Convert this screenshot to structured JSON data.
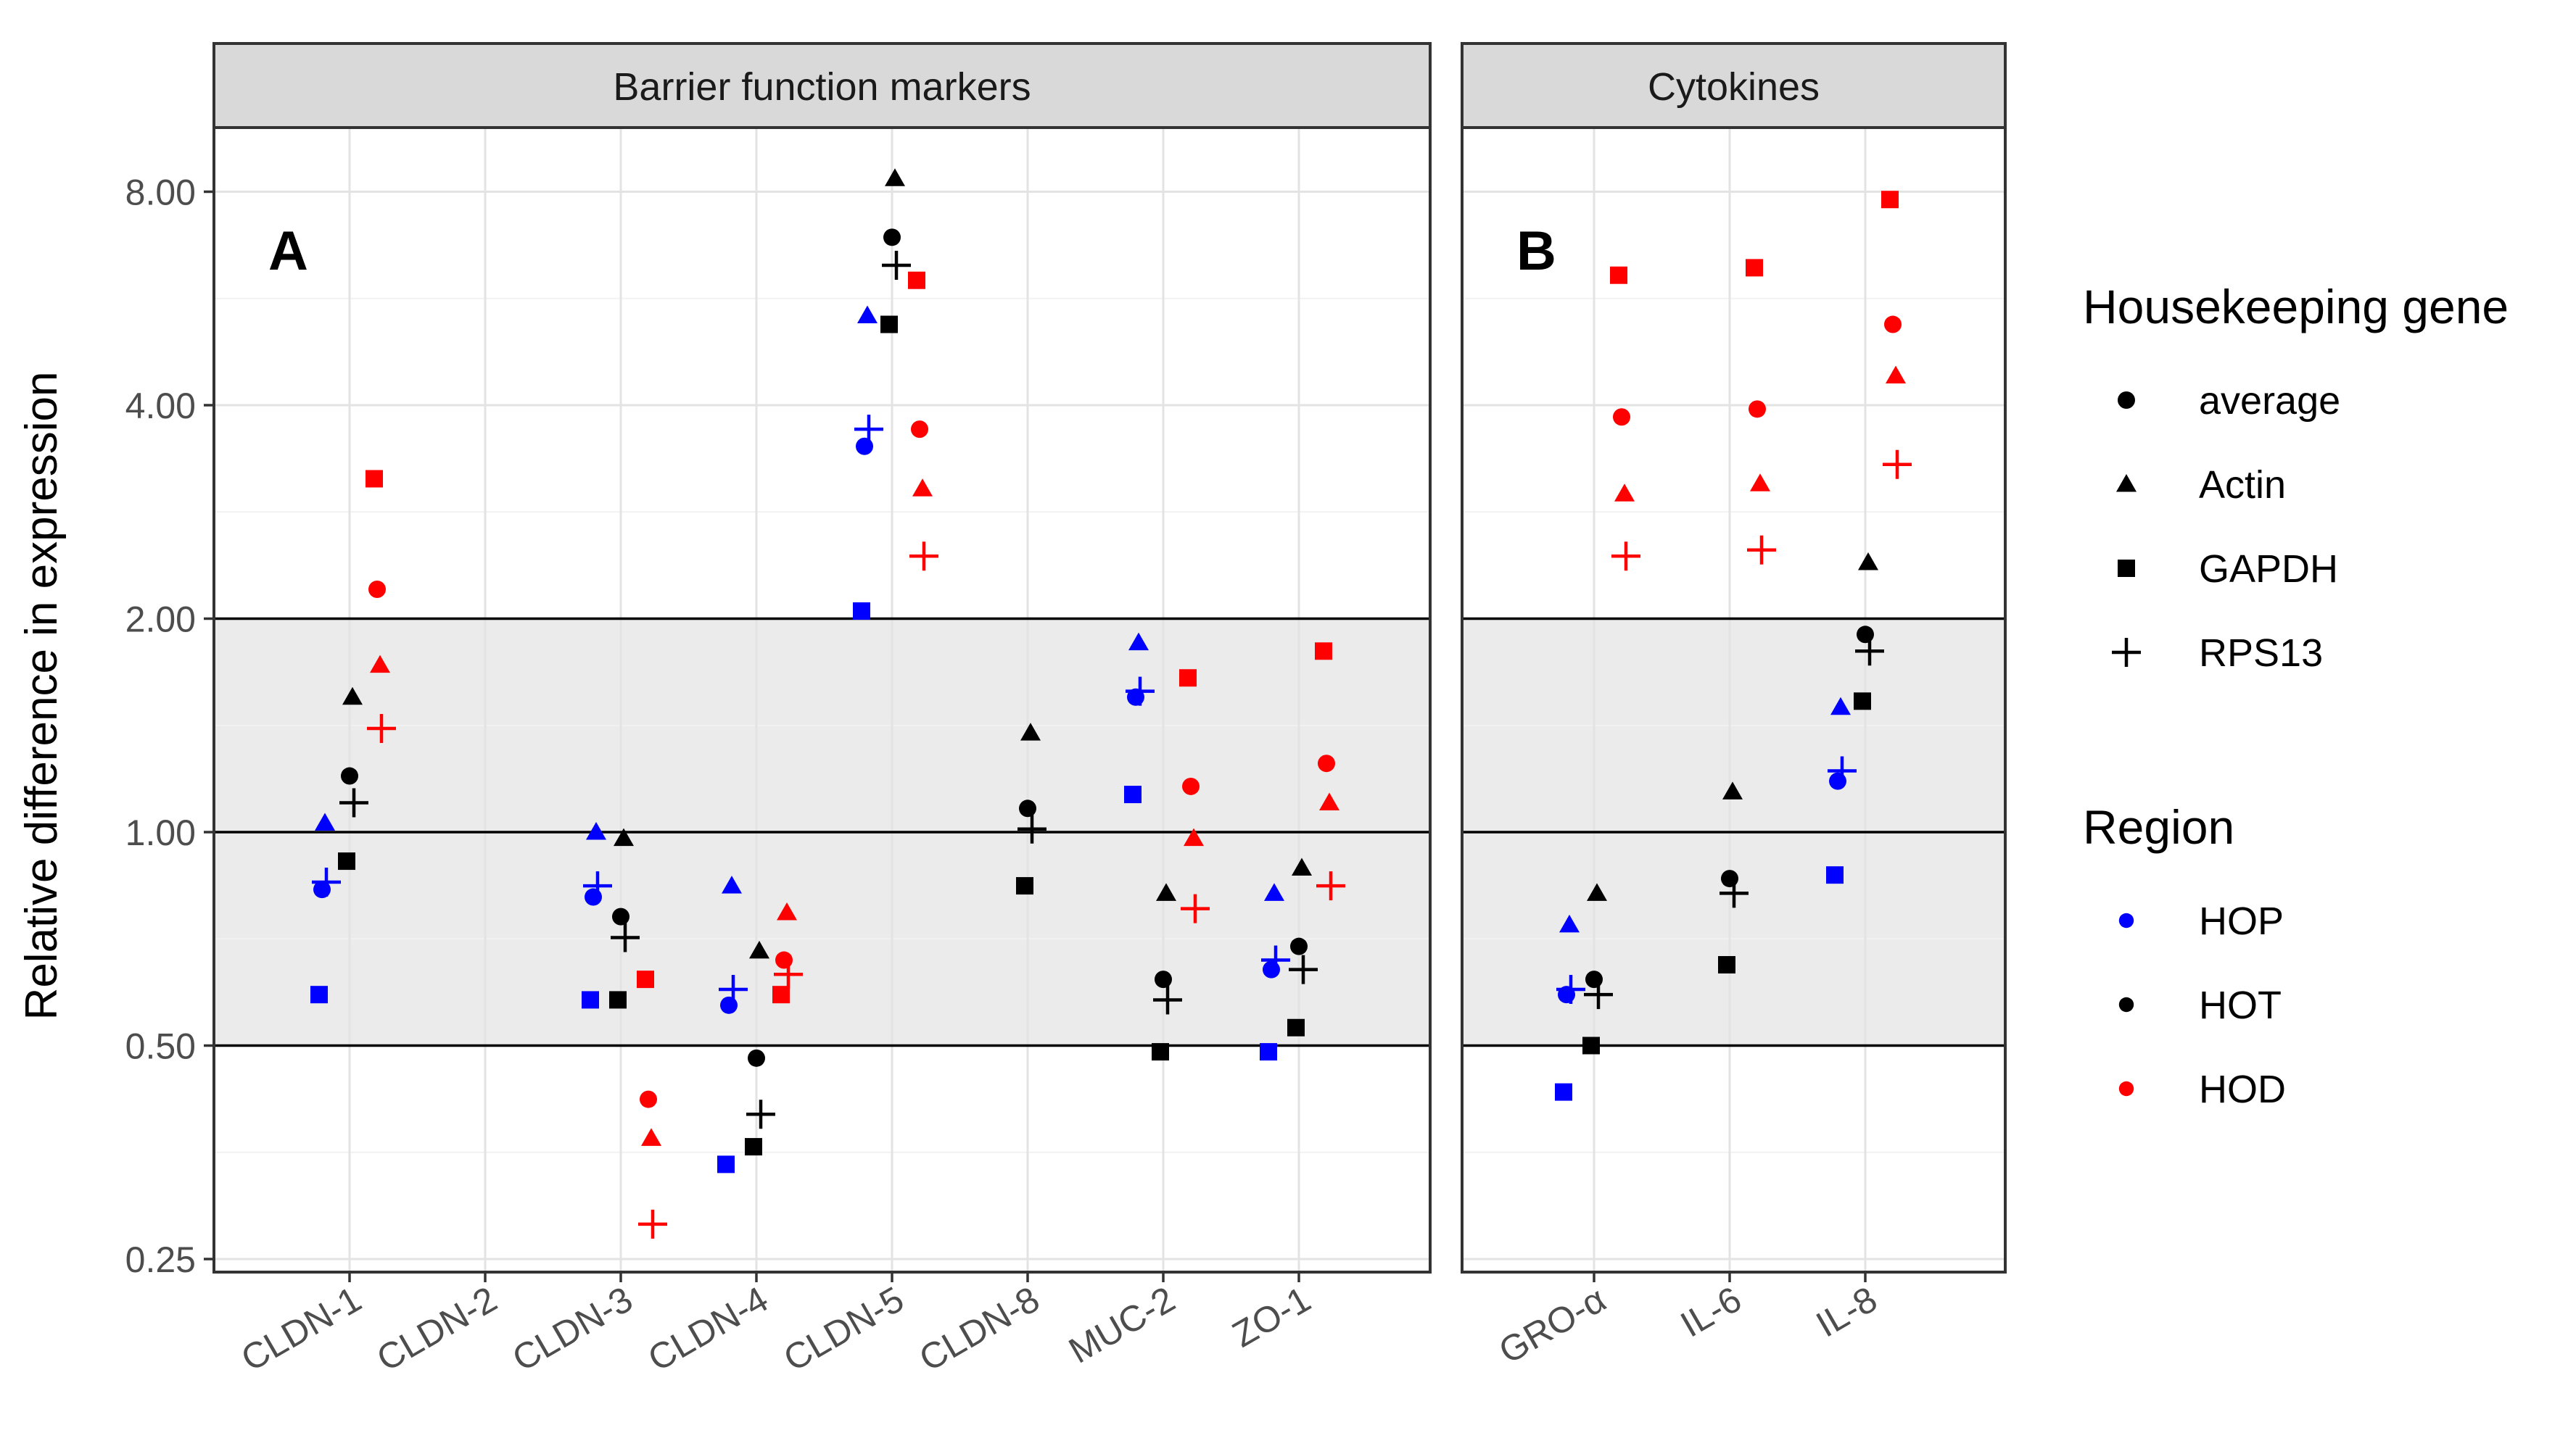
{
  "chart_data": {
    "type": "scatter",
    "ylabel": "Relative difference in expression",
    "yscale": "log2",
    "ylim": [
      0.25,
      10
    ],
    "yticks": [
      {
        "value": 0.25,
        "label": "0.25"
      },
      {
        "value": 0.5,
        "label": "0.50"
      },
      {
        "value": 1,
        "label": "1.00"
      },
      {
        "value": 2,
        "label": "2.00"
      },
      {
        "value": 4,
        "label": "4.00"
      },
      {
        "value": 8,
        "label": "8.00"
      }
    ],
    "shaded_band": [
      0.5,
      2
    ],
    "reference_lines": [
      0.5,
      1,
      2
    ],
    "regions": [
      {
        "name": "HOP",
        "color": "#0000FF",
        "offset": -1
      },
      {
        "name": "HOT",
        "color": "#000000",
        "offset": 0
      },
      {
        "name": "HOD",
        "color": "#FF0000",
        "offset": 1
      }
    ],
    "housekeeping_genes": [
      {
        "name": "average",
        "shape": "circle"
      },
      {
        "name": "Actin",
        "shape": "triangle"
      },
      {
        "name": "GAPDH",
        "shape": "square"
      },
      {
        "name": "RPS13",
        "shape": "plus"
      }
    ],
    "panels": [
      {
        "strip_title": "Barrier function markers",
        "panel_label": "A",
        "categories": [
          "CLDN-1",
          "CLDN-2",
          "CLDN-3",
          "CLDN-4",
          "CLDN-5",
          "CLDN-8",
          "MUC-2",
          "ZO-1"
        ],
        "data": {
          "CLDN-1": {
            "HOP": {
              "average": 0.83,
              "Actin": 1.03,
              "GAPDH": 0.59,
              "RPS13": 0.85
            },
            "HOT": {
              "average": 1.2,
              "Actin": 1.55,
              "GAPDH": 0.91,
              "RPS13": 1.1
            },
            "HOD": {
              "average": 2.2,
              "Actin": 1.72,
              "GAPDH": 3.15,
              "RPS13": 1.4
            }
          },
          "CLDN-2": {},
          "CLDN-3": {
            "HOP": {
              "average": 0.81,
              "Actin": 1.0,
              "GAPDH": 0.58,
              "RPS13": 0.84
            },
            "HOT": {
              "average": 0.76,
              "Actin": 0.98,
              "GAPDH": 0.58,
              "RPS13": 0.71
            },
            "HOD": {
              "average": 0.42,
              "Actin": 0.37,
              "GAPDH": 0.62,
              "RPS13": 0.28
            }
          },
          "CLDN-4": {
            "HOP": {
              "average": 0.57,
              "Actin": 0.84,
              "GAPDH": 0.34,
              "RPS13": 0.6
            },
            "HOT": {
              "average": 0.48,
              "Actin": 0.68,
              "GAPDH": 0.36,
              "RPS13": 0.4
            },
            "HOD": {
              "average": 0.66,
              "Actin": 0.77,
              "GAPDH": 0.59,
              "RPS13": 0.63
            }
          },
          "CLDN-5": {
            "HOP": {
              "average": 3.5,
              "Actin": 5.35,
              "GAPDH": 2.05,
              "RPS13": 3.7
            },
            "HOT": {
              "average": 6.9,
              "Actin": 8.35,
              "GAPDH": 5.2,
              "RPS13": 6.3
            },
            "HOD": {
              "average": 3.7,
              "Actin": 3.05,
              "GAPDH": 6.0,
              "RPS13": 2.45
            }
          },
          "CLDN-8": {
            "HOP": {},
            "HOT": {
              "average": 1.08,
              "Actin": 1.38,
              "GAPDH": 0.84,
              "RPS13": 1.01
            },
            "HOD": {}
          },
          "MUC-2": {
            "HOP": {
              "average": 1.55,
              "Actin": 1.85,
              "GAPDH": 1.13,
              "RPS13": 1.58
            },
            "HOT": {
              "average": 0.62,
              "Actin": 0.82,
              "GAPDH": 0.49,
              "RPS13": 0.58
            },
            "HOD": {
              "average": 1.16,
              "Actin": 0.98,
              "GAPDH": 1.65,
              "RPS13": 0.78
            }
          },
          "ZO-1": {
            "HOP": {
              "average": 0.64,
              "Actin": 0.82,
              "GAPDH": 0.49,
              "RPS13": 0.66
            },
            "HOT": {
              "average": 0.69,
              "Actin": 0.89,
              "GAPDH": 0.53,
              "RPS13": 0.64
            },
            "HOD": {
              "average": 1.25,
              "Actin": 1.1,
              "GAPDH": 1.8,
              "RPS13": 0.84
            }
          }
        }
      },
      {
        "strip_title": "Cytokines",
        "panel_label": "B",
        "categories": [
          "GRO-α",
          "IL-6",
          "IL-8"
        ],
        "data": {
          "GRO-α": {
            "HOP": {
              "average": 0.59,
              "Actin": 0.74,
              "GAPDH": 0.43,
              "RPS13": 0.6
            },
            "HOT": {
              "average": 0.62,
              "Actin": 0.82,
              "GAPDH": 0.5,
              "RPS13": 0.59
            },
            "HOD": {
              "average": 3.85,
              "Actin": 3.0,
              "GAPDH": 6.1,
              "RPS13": 2.45
            }
          },
          "IL-6": {
            "HOP": {},
            "HOT": {
              "average": 0.86,
              "Actin": 1.14,
              "GAPDH": 0.65,
              "RPS13": 0.82
            },
            "HOD": {
              "average": 3.95,
              "Actin": 3.1,
              "GAPDH": 6.25,
              "RPS13": 2.5
            }
          },
          "IL-8": {
            "HOP": {
              "average": 1.18,
              "Actin": 1.5,
              "GAPDH": 0.87,
              "RPS13": 1.22
            },
            "HOT": {
              "average": 1.9,
              "Actin": 2.4,
              "GAPDH": 1.53,
              "RPS13": 1.8
            },
            "HOD": {
              "average": 5.2,
              "Actin": 4.4,
              "GAPDH": 7.8,
              "RPS13": 3.3
            }
          }
        }
      }
    ],
    "legends": [
      {
        "title": "Housekeeping gene",
        "kind": "shape",
        "entries": [
          "average",
          "Actin",
          "GAPDH",
          "RPS13"
        ]
      },
      {
        "title": "Region",
        "kind": "color",
        "entries": [
          "HOP",
          "HOT",
          "HOD"
        ]
      }
    ]
  }
}
